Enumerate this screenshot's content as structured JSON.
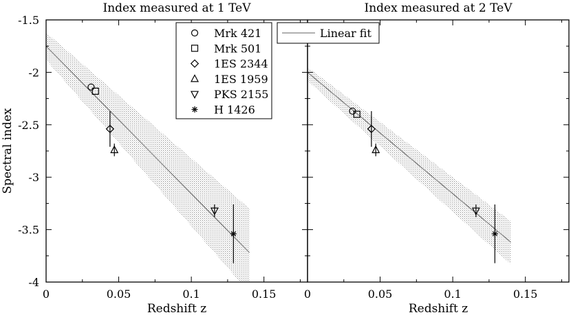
{
  "chart_data": [
    {
      "type": "scatter",
      "title": "Index measured at 1 TeV",
      "xlabel": "Redshift z",
      "ylabel": "Spectral index",
      "xlim": [
        0,
        0.18
      ],
      "ylim": [
        -4,
        -1.5
      ],
      "xticks": [
        0,
        0.05,
        0.1,
        0.15
      ],
      "xtick_labels": [
        "0",
        "0.05",
        "0.1",
        "0.15"
      ],
      "yticks": [
        -1.5,
        -2,
        -2.5,
        -3,
        -3.5,
        -4
      ],
      "ytick_labels": [
        "-1.5",
        "-2",
        "-2.5",
        "-3",
        "-3.5",
        "-4"
      ],
      "series": [
        {
          "name": "Mrk 421",
          "marker": "circle",
          "points": [
            {
              "x": 0.031,
              "y": -2.14,
              "err": 0
            }
          ]
        },
        {
          "name": "Mrk 501",
          "marker": "square",
          "points": [
            {
              "x": 0.034,
              "y": -2.18,
              "err": 0
            }
          ]
        },
        {
          "name": "1ES 2344",
          "marker": "diamond",
          "points": [
            {
              "x": 0.044,
              "y": -2.54,
              "err": 0.17
            }
          ]
        },
        {
          "name": "1ES 1959",
          "marker": "triangle-up",
          "points": [
            {
              "x": 0.047,
              "y": -2.74,
              "err": 0.06
            }
          ]
        },
        {
          "name": "PKS 2155",
          "marker": "triangle-down",
          "points": [
            {
              "x": 0.116,
              "y": -3.32,
              "err": 0.06
            }
          ]
        },
        {
          "name": "H 1426",
          "marker": "star",
          "points": [
            {
              "x": 0.129,
              "y": -3.54,
              "err": 0.28
            }
          ]
        }
      ],
      "fit": {
        "name": "Linear fit",
        "x": [
          0,
          0.14
        ],
        "y": [
          -1.75,
          -3.72
        ]
      },
      "band": {
        "x": [
          0,
          0.14
        ],
        "upper": [
          -1.62,
          -3.3
        ],
        "lower": [
          -1.88,
          -4.1
        ]
      }
    },
    {
      "type": "scatter",
      "title": "Index measured at 2 TeV",
      "xlabel": "Redshift z",
      "ylabel": "",
      "xlim": [
        0,
        0.18
      ],
      "ylim": [
        -4,
        -1.5
      ],
      "xticks": [
        0,
        0.05,
        0.1,
        0.15
      ],
      "xtick_labels": [
        "0",
        "0.05",
        "0.1",
        "0.15"
      ],
      "series": [
        {
          "name": "Mrk 421",
          "marker": "circle",
          "points": [
            {
              "x": 0.031,
              "y": -2.37,
              "err": 0
            }
          ]
        },
        {
          "name": "Mrk 501",
          "marker": "square",
          "points": [
            {
              "x": 0.034,
              "y": -2.4,
              "err": 0
            }
          ]
        },
        {
          "name": "1ES 2344",
          "marker": "diamond",
          "points": [
            {
              "x": 0.044,
              "y": -2.54,
              "err": 0.17
            }
          ]
        },
        {
          "name": "1ES 1959",
          "marker": "triangle-up",
          "points": [
            {
              "x": 0.047,
              "y": -2.74,
              "err": 0.06
            }
          ]
        },
        {
          "name": "PKS 2155",
          "marker": "triangle-down",
          "points": [
            {
              "x": 0.116,
              "y": -3.32,
              "err": 0.06
            }
          ]
        },
        {
          "name": "H 1426",
          "marker": "star",
          "points": [
            {
              "x": 0.129,
              "y": -3.54,
              "err": 0.28
            }
          ]
        }
      ],
      "fit": {
        "name": "Linear fit",
        "x": [
          0,
          0.14
        ],
        "y": [
          -2.0,
          -3.62
        ]
      },
      "band": {
        "x": [
          0,
          0.14
        ],
        "upper": [
          -1.95,
          -3.42
        ],
        "lower": [
          -2.08,
          -3.83
        ]
      }
    }
  ],
  "legend": {
    "entries": [
      {
        "marker": "circle",
        "label": "Mrk 421"
      },
      {
        "marker": "square",
        "label": "Mrk 501"
      },
      {
        "marker": "diamond",
        "label": "1ES 2344"
      },
      {
        "marker": "triangle-up",
        "label": "1ES 1959"
      },
      {
        "marker": "triangle-down",
        "label": "PKS 2155"
      },
      {
        "marker": "star",
        "label": "H 1426"
      }
    ],
    "fit_label": "Linear fit"
  },
  "colors": {
    "fit_line": "#808080",
    "band": "#9a9a9a",
    "ink": "#000000"
  }
}
